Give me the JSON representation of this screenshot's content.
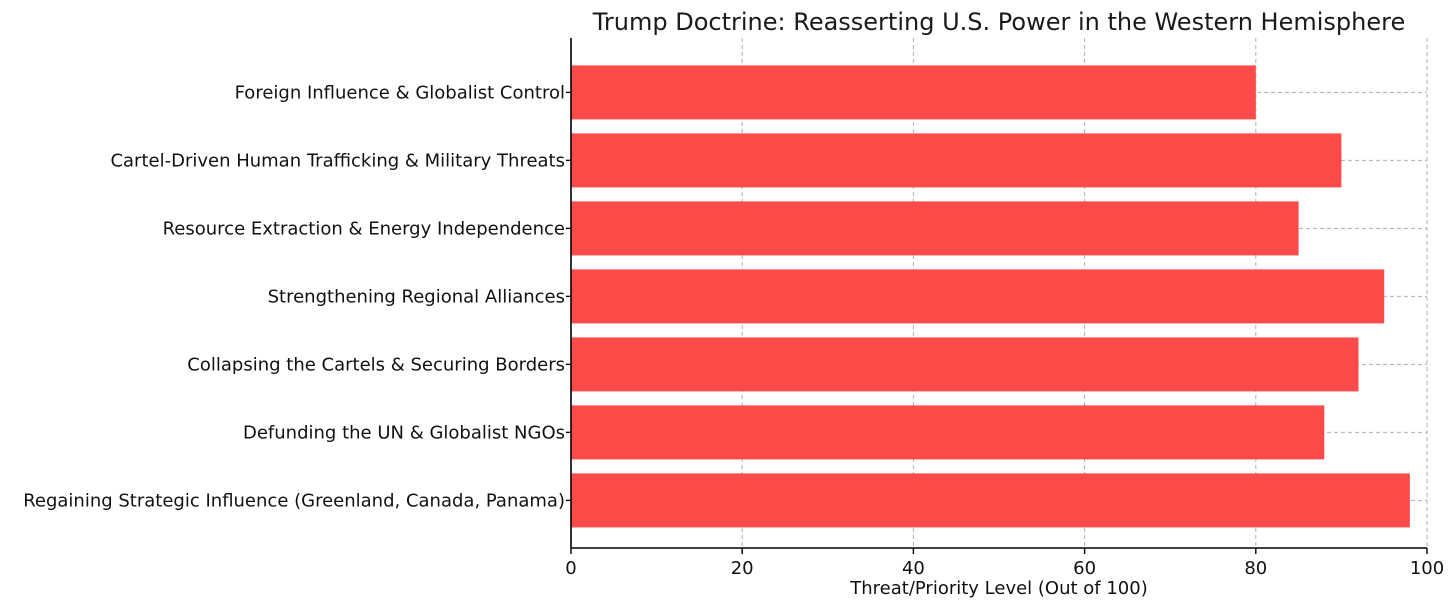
{
  "chart_data": {
    "type": "bar",
    "orientation": "horizontal",
    "title": "Trump Doctrine: Reasserting U.S. Power in the Western Hemisphere",
    "xlabel": "Threat/Priority Level (Out of 100)",
    "ylabel": "",
    "categories": [
      "Regaining Strategic Influence (Greenland, Canada, Panama)",
      "Defunding the UN & Globalist NGOs",
      "Collapsing the Cartels & Securing Borders",
      "Strengthening Regional Alliances",
      "Resource Extraction & Energy Independence",
      "Cartel-Driven Human Trafficking & Military Threats",
      "Foreign Influence & Globalist Control"
    ],
    "values": [
      98,
      88,
      92,
      95,
      85,
      90,
      80
    ],
    "xlim": [
      0,
      100
    ],
    "xticks": [
      "0",
      "20",
      "40",
      "60",
      "80",
      "100"
    ],
    "grid": true,
    "bar_color": "#ff4a4a"
  }
}
